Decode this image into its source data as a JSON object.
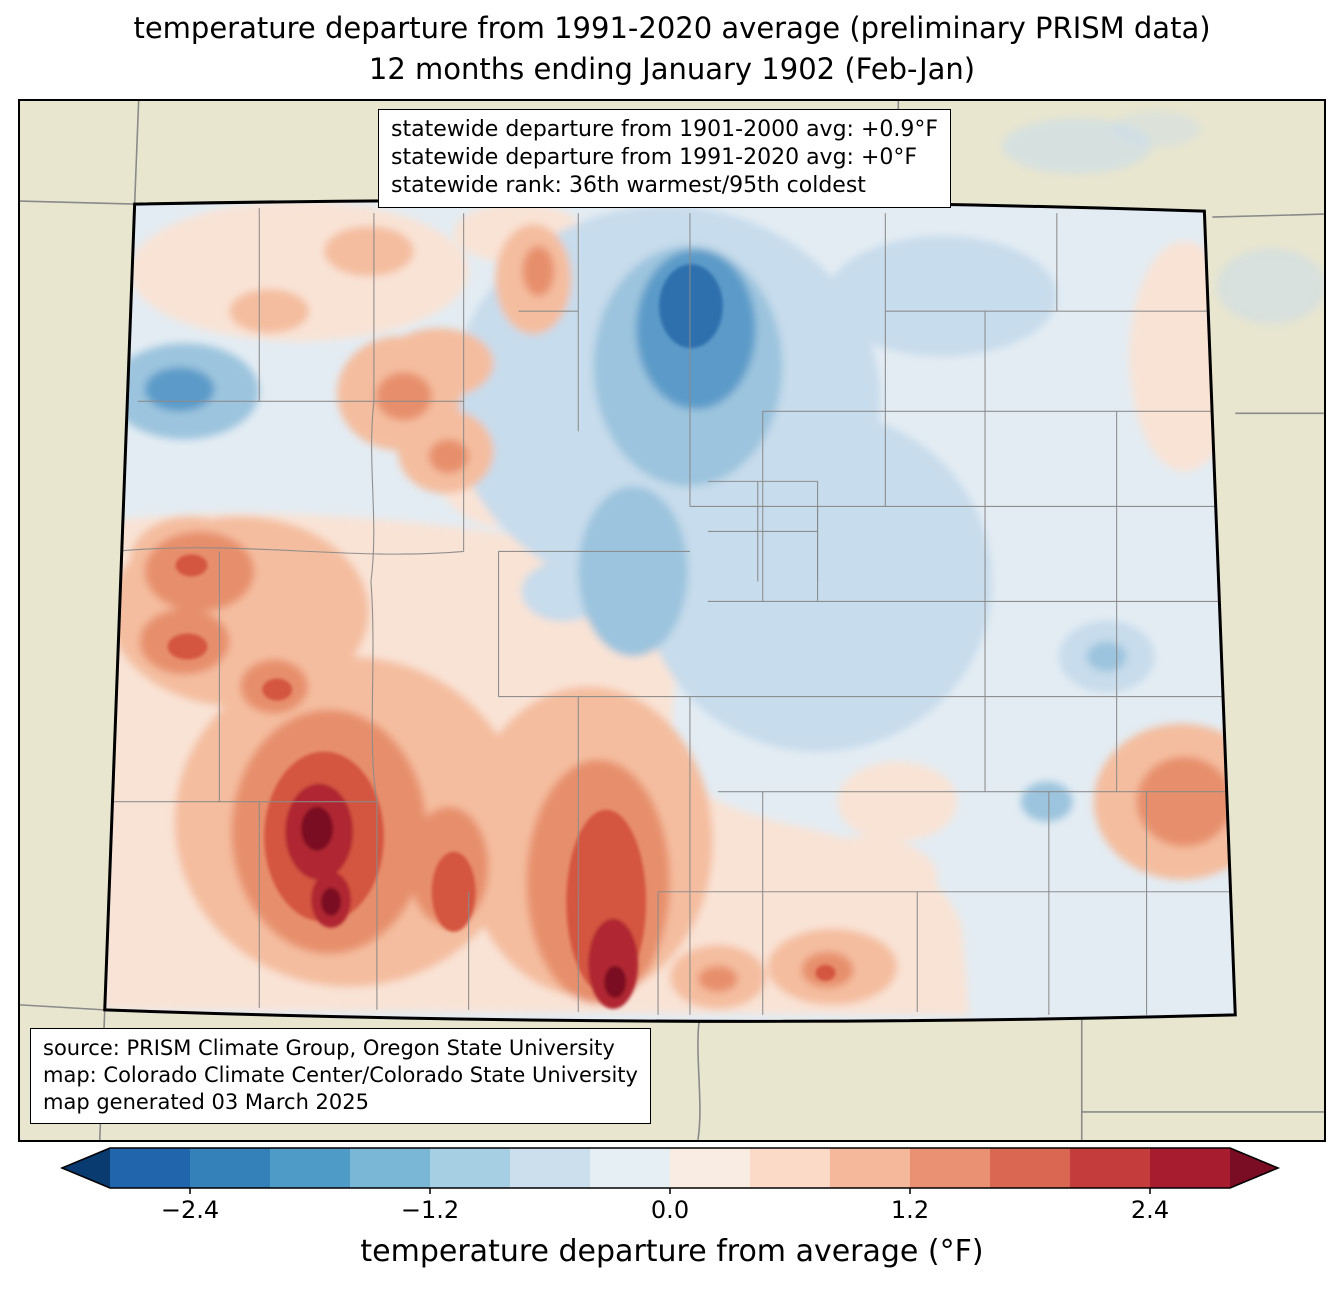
{
  "title": {
    "line1": "temperature departure from 1991-2020 average (preliminary PRISM data)",
    "line2": "12 months ending January 1902 (Feb-Jan)"
  },
  "map": {
    "stats_box": {
      "lines": [
        "statewide departure from 1901-2000 avg: +0.9°F",
        "statewide departure from 1991-2020 avg: +0°F",
        "statewide rank: 36th warmest/95th coldest"
      ]
    },
    "source_box": {
      "lines": [
        "source: PRISM Climate Group, Oregon State University",
        "map: Colorado Climate Center/Colorado State University",
        "map generated 03 March 2025"
      ]
    }
  },
  "colorbar": {
    "label": "temperature departure from average (°F)",
    "ticks": [
      "−2.4",
      "−1.2",
      "0.0",
      "1.2",
      "2.4"
    ],
    "segment_colors": [
      "#2166ac",
      "#3480b9",
      "#4f9bc7",
      "#7ab6d6",
      "#a7cfe4",
      "#cbdfec",
      "#e6eff4",
      "#f9ece2",
      "#fbdbc7",
      "#f5b89a",
      "#e99172",
      "#d96752",
      "#c43c3c",
      "#a81c30"
    ],
    "left_arrow_color": "#0a3b70",
    "right_arrow_color": "#7a0c24"
  },
  "palette": {
    "beige": "#e9e6cf",
    "base": "#e3ecf3",
    "blue1": "#c7dcec",
    "blue2": "#9cc4de",
    "blue3": "#5b9bc9",
    "blue4": "#2e6fad",
    "pink": "#f9e3d5",
    "salmon": "#f4bd9f",
    "rmed": "#e78f6c",
    "rdeep": "#d4553f",
    "rdark": "#b02731",
    "maroon": "#7a0c24",
    "countyline": "#8a8a8a"
  },
  "chart_data": {
    "type": "heatmap",
    "subtype": "filled-contour choropleth map",
    "region": "Colorado with surrounding state borders",
    "variable": "temperature departure from 1991-2020 average (°F)",
    "period": "12 months ending January 1902 (Feb-Jan)",
    "data_source": "preliminary PRISM data",
    "colorbar_tick_values": [
      -2.4,
      -1.2,
      0.0,
      1.2,
      2.4
    ],
    "colorbar_range": [
      -2.8,
      2.8
    ],
    "colorbar_step": 0.4,
    "statewide_departure_from_1901_2000_avg": "+0.9°F",
    "statewide_departure_from_1991_2020_avg": "+0°F",
    "statewide_rank": "36th warmest/95th coldest",
    "pattern_summary": "cold anomalies (blue) over north-central Colorado and much of the eastern plains; warm anomalies (red) over the southwest and south-central mountains with strongest warmth near the San Juan and upper Rio Grande areas; small warm spot along the central east border"
  }
}
